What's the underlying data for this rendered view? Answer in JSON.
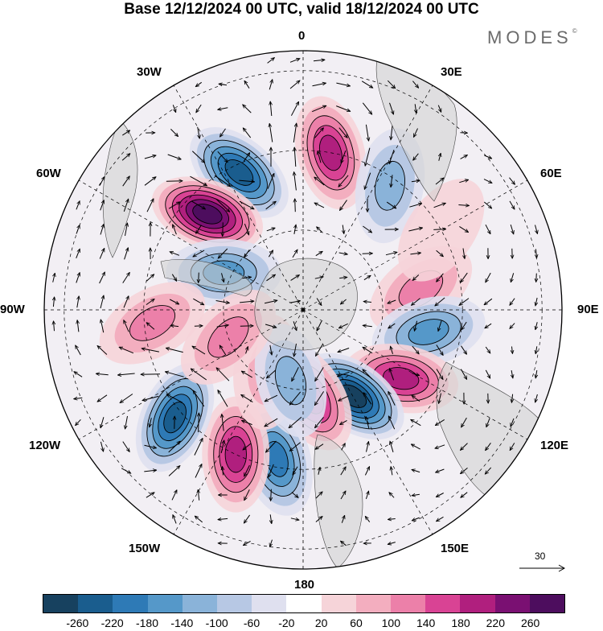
{
  "title": "Base 12/12/2024 00 UTC, valid 18/12/2024 00 UTC",
  "brand": "MODES",
  "brand_mark": "©",
  "longitude_labels": [
    "0",
    "30E",
    "60E",
    "90E",
    "120E",
    "150E",
    "180",
    "150W",
    "120W",
    "90W",
    "60W",
    "30W"
  ],
  "reference_vector": "30",
  "colorbar": {
    "ticks": [
      "-260",
      "-220",
      "-180",
      "-140",
      "-100",
      "-60",
      "-20",
      "20",
      "60",
      "100",
      "140",
      "180",
      "220",
      "260"
    ],
    "colors": [
      "#17415f",
      "#1a5d8e",
      "#2e7ab6",
      "#5598c9",
      "#8ab3d9",
      "#b7c8e4",
      "#dfe0ef",
      "#ffffff",
      "#f6d4d9",
      "#f3aebf",
      "#ec80a9",
      "#d94394",
      "#b01f7e",
      "#7a1072",
      "#4d0d5e"
    ]
  },
  "map": {
    "projection": "south polar stereographic",
    "anomalies": [
      {
        "sign": "positive",
        "lon": 10,
        "colat": 40,
        "magnitude": 200
      },
      {
        "sign": "negative",
        "lon": 35,
        "colat": 38,
        "magnitude": 120
      },
      {
        "sign": "negative",
        "lon": -25,
        "colat": 38,
        "magnitude": 240
      },
      {
        "sign": "positive",
        "lon": -45,
        "colat": 34,
        "magnitude": 260
      },
      {
        "sign": "negative",
        "lon": -65,
        "colat": 22,
        "magnitude": 140
      },
      {
        "sign": "positive",
        "lon": -95,
        "colat": 38,
        "magnitude": 120
      },
      {
        "sign": "positive",
        "lon": 80,
        "colat": 30,
        "magnitude": 100
      },
      {
        "sign": "negative",
        "lon": 100,
        "colat": 32,
        "magnitude": 140
      },
      {
        "sign": "positive",
        "lon": 125,
        "colat": 30,
        "magnitude": 200
      },
      {
        "sign": "negative",
        "lon": 150,
        "colat": 25,
        "magnitude": 260
      },
      {
        "sign": "positive",
        "lon": 175,
        "colat": 22,
        "magnitude": 180
      },
      {
        "sign": "negative",
        "lon": -170,
        "colat": 38,
        "magnitude": 180
      },
      {
        "sign": "positive",
        "lon": -155,
        "colat": 40,
        "magnitude": 180
      },
      {
        "sign": "negative",
        "lon": -130,
        "colat": 42,
        "magnitude": 220
      },
      {
        "sign": "positive",
        "lon": -150,
        "colat": 18,
        "magnitude": 80
      },
      {
        "sign": "negative",
        "lon": -170,
        "colat": 18,
        "magnitude": 100
      },
      {
        "sign": "positive",
        "lon": -110,
        "colat": 20,
        "magnitude": 100
      },
      {
        "sign": "positive",
        "lon": 60,
        "colat": 40,
        "magnitude": 40
      }
    ]
  }
}
